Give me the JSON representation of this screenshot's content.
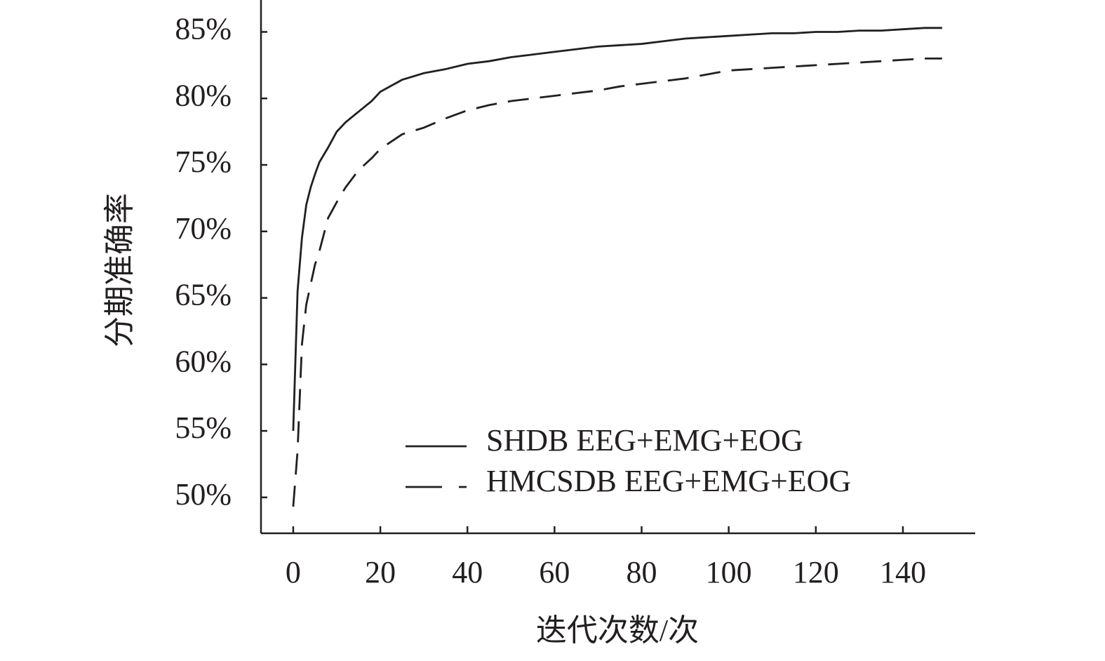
{
  "chart_data": {
    "type": "line",
    "x_label": "迭代次数/次",
    "y_label": "分期准确率",
    "x": [
      0,
      1,
      2,
      3,
      4,
      5,
      6,
      8,
      10,
      12,
      15,
      18,
      20,
      25,
      30,
      35,
      40,
      45,
      50,
      55,
      60,
      65,
      70,
      75,
      80,
      85,
      90,
      95,
      100,
      105,
      110,
      115,
      120,
      125,
      130,
      135,
      140,
      145,
      149
    ],
    "series": [
      {
        "name": "SHDB EEG+EMG+EOG",
        "color": "#231f20",
        "style": "solid",
        "values": [
          55,
          65.5,
          69.5,
          72,
          73.3,
          74.3,
          75.2,
          76.3,
          77.5,
          78.2,
          79,
          79.8,
          80.5,
          81.4,
          81.9,
          82.2,
          82.6,
          82.8,
          83.1,
          83.3,
          83.5,
          83.7,
          83.9,
          84.0,
          84.1,
          84.3,
          84.5,
          84.6,
          84.7,
          84.8,
          84.9,
          84.9,
          85.0,
          85.0,
          85.1,
          85.1,
          85.2,
          85.3,
          85.3
        ]
      },
      {
        "name": "HMCSDB EEG+EMG+EOG",
        "color": "#231f20",
        "style": "dashed",
        "values": [
          49.3,
          53.5,
          61.5,
          64.5,
          66,
          67.5,
          68.5,
          71,
          72.2,
          73.3,
          74.6,
          75.5,
          76.2,
          77.3,
          77.8,
          78.5,
          79.1,
          79.5,
          79.8,
          80.0,
          80.2,
          80.4,
          80.6,
          80.9,
          81.1,
          81.3,
          81.5,
          81.8,
          82.1,
          82.2,
          82.3,
          82.4,
          82.5,
          82.6,
          82.7,
          82.8,
          82.9,
          83.0,
          83.0
        ]
      }
    ],
    "xlim": [
      -7.4,
      156.6
    ],
    "ylim": [
      47.3,
      87.4
    ],
    "xticks": [
      0,
      20,
      40,
      60,
      80,
      100,
      120,
      140
    ],
    "yticks": [
      {
        "value": 50,
        "label": "50%"
      },
      {
        "value": 55,
        "label": "55%"
      },
      {
        "value": 60,
        "label": "60%"
      },
      {
        "value": 65,
        "label": "65%"
      },
      {
        "value": 70,
        "label": "70%"
      },
      {
        "value": 75,
        "label": "75%"
      },
      {
        "value": 80,
        "label": "80%"
      },
      {
        "value": 85,
        "label": "85%"
      }
    ],
    "grid": false,
    "legend": "lower right"
  }
}
